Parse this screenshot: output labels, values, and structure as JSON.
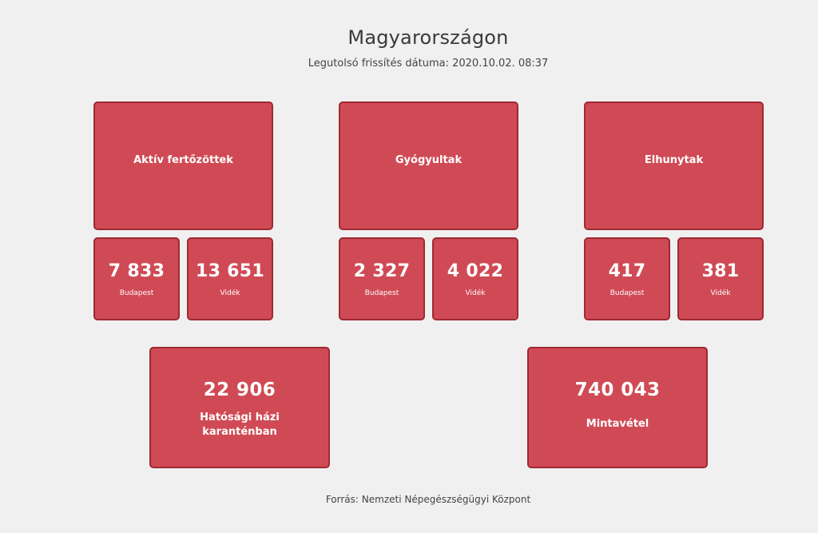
{
  "header": {
    "title": "Magyarországon",
    "subtitle": "Legutolsó frissítés dátuma: 2020.10.02. 08:37"
  },
  "groups": [
    {
      "label": "Aktív fertőzöttek",
      "budapest": "7 833",
      "budapest_label": "Budapest",
      "videk": "13 651",
      "videk_label": "Vidék"
    },
    {
      "label": "Gyógyultak",
      "budapest": "2 327",
      "budapest_label": "Budapest",
      "videk": "4 022",
      "videk_label": "Vidék"
    },
    {
      "label": "Elhunytak",
      "budapest": "417",
      "budapest_label": "Budapest",
      "videk": "381",
      "videk_label": "Vidék"
    }
  ],
  "quarantine": {
    "value": "22 906",
    "label": "Hatósági házi karanténban"
  },
  "sampling": {
    "value": "740 043",
    "label": "Mintavétel"
  },
  "footer": {
    "source": "Forrás: Nemzeti Népegészségügyi Központ"
  },
  "colors": {
    "card": "#d04a55",
    "card_border": "#9e2a32",
    "background": "#f0f0f0"
  }
}
